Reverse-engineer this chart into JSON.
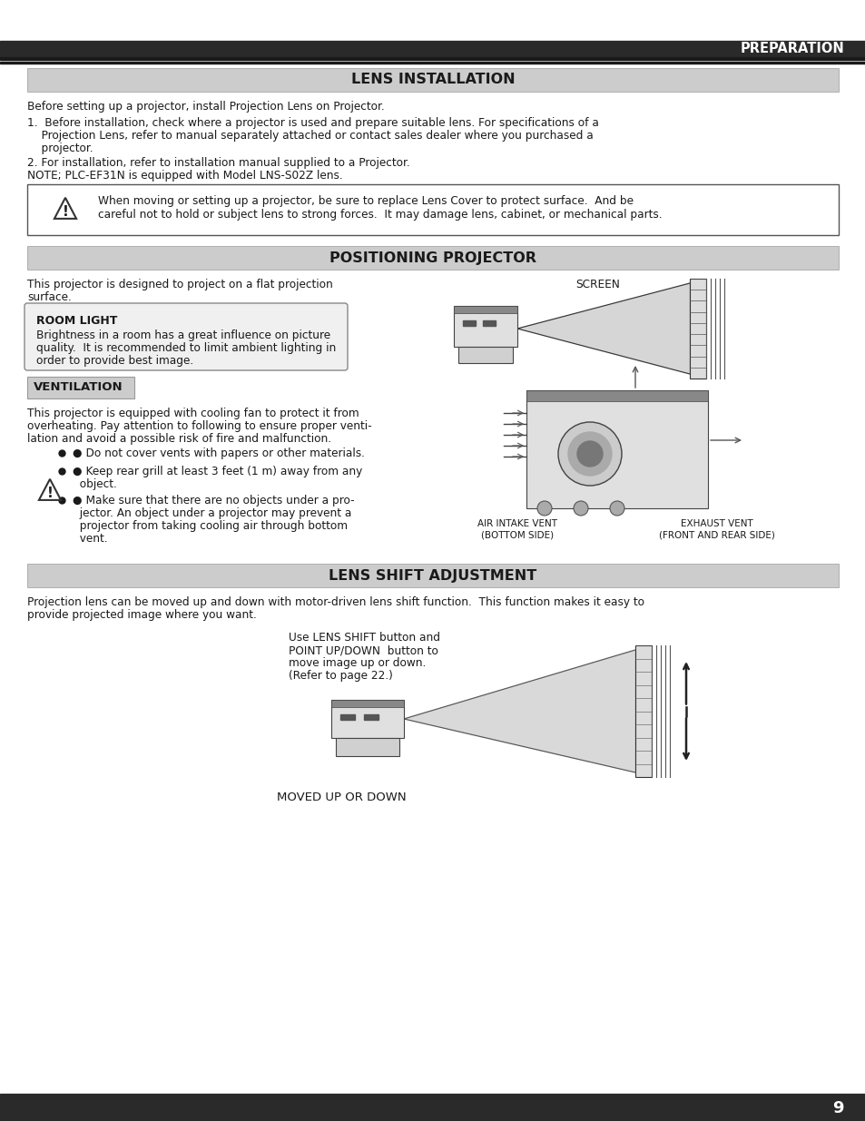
{
  "bg_color": "#ffffff",
  "page_number": "9",
  "header_title": "PREPARATION",
  "lens_install_title": "LENS INSTALLATION",
  "positioning_title": "POSITIONING PROJECTOR",
  "lens_shift_title": "LENS SHIFT ADJUSTMENT",
  "ventilation_title": "VENTILATION",
  "room_light_title": "ROOM LIGHT",
  "text_color": "#1a1a1a",
  "section_bg": "#cccccc",
  "header_bg": "#2a2a2a"
}
